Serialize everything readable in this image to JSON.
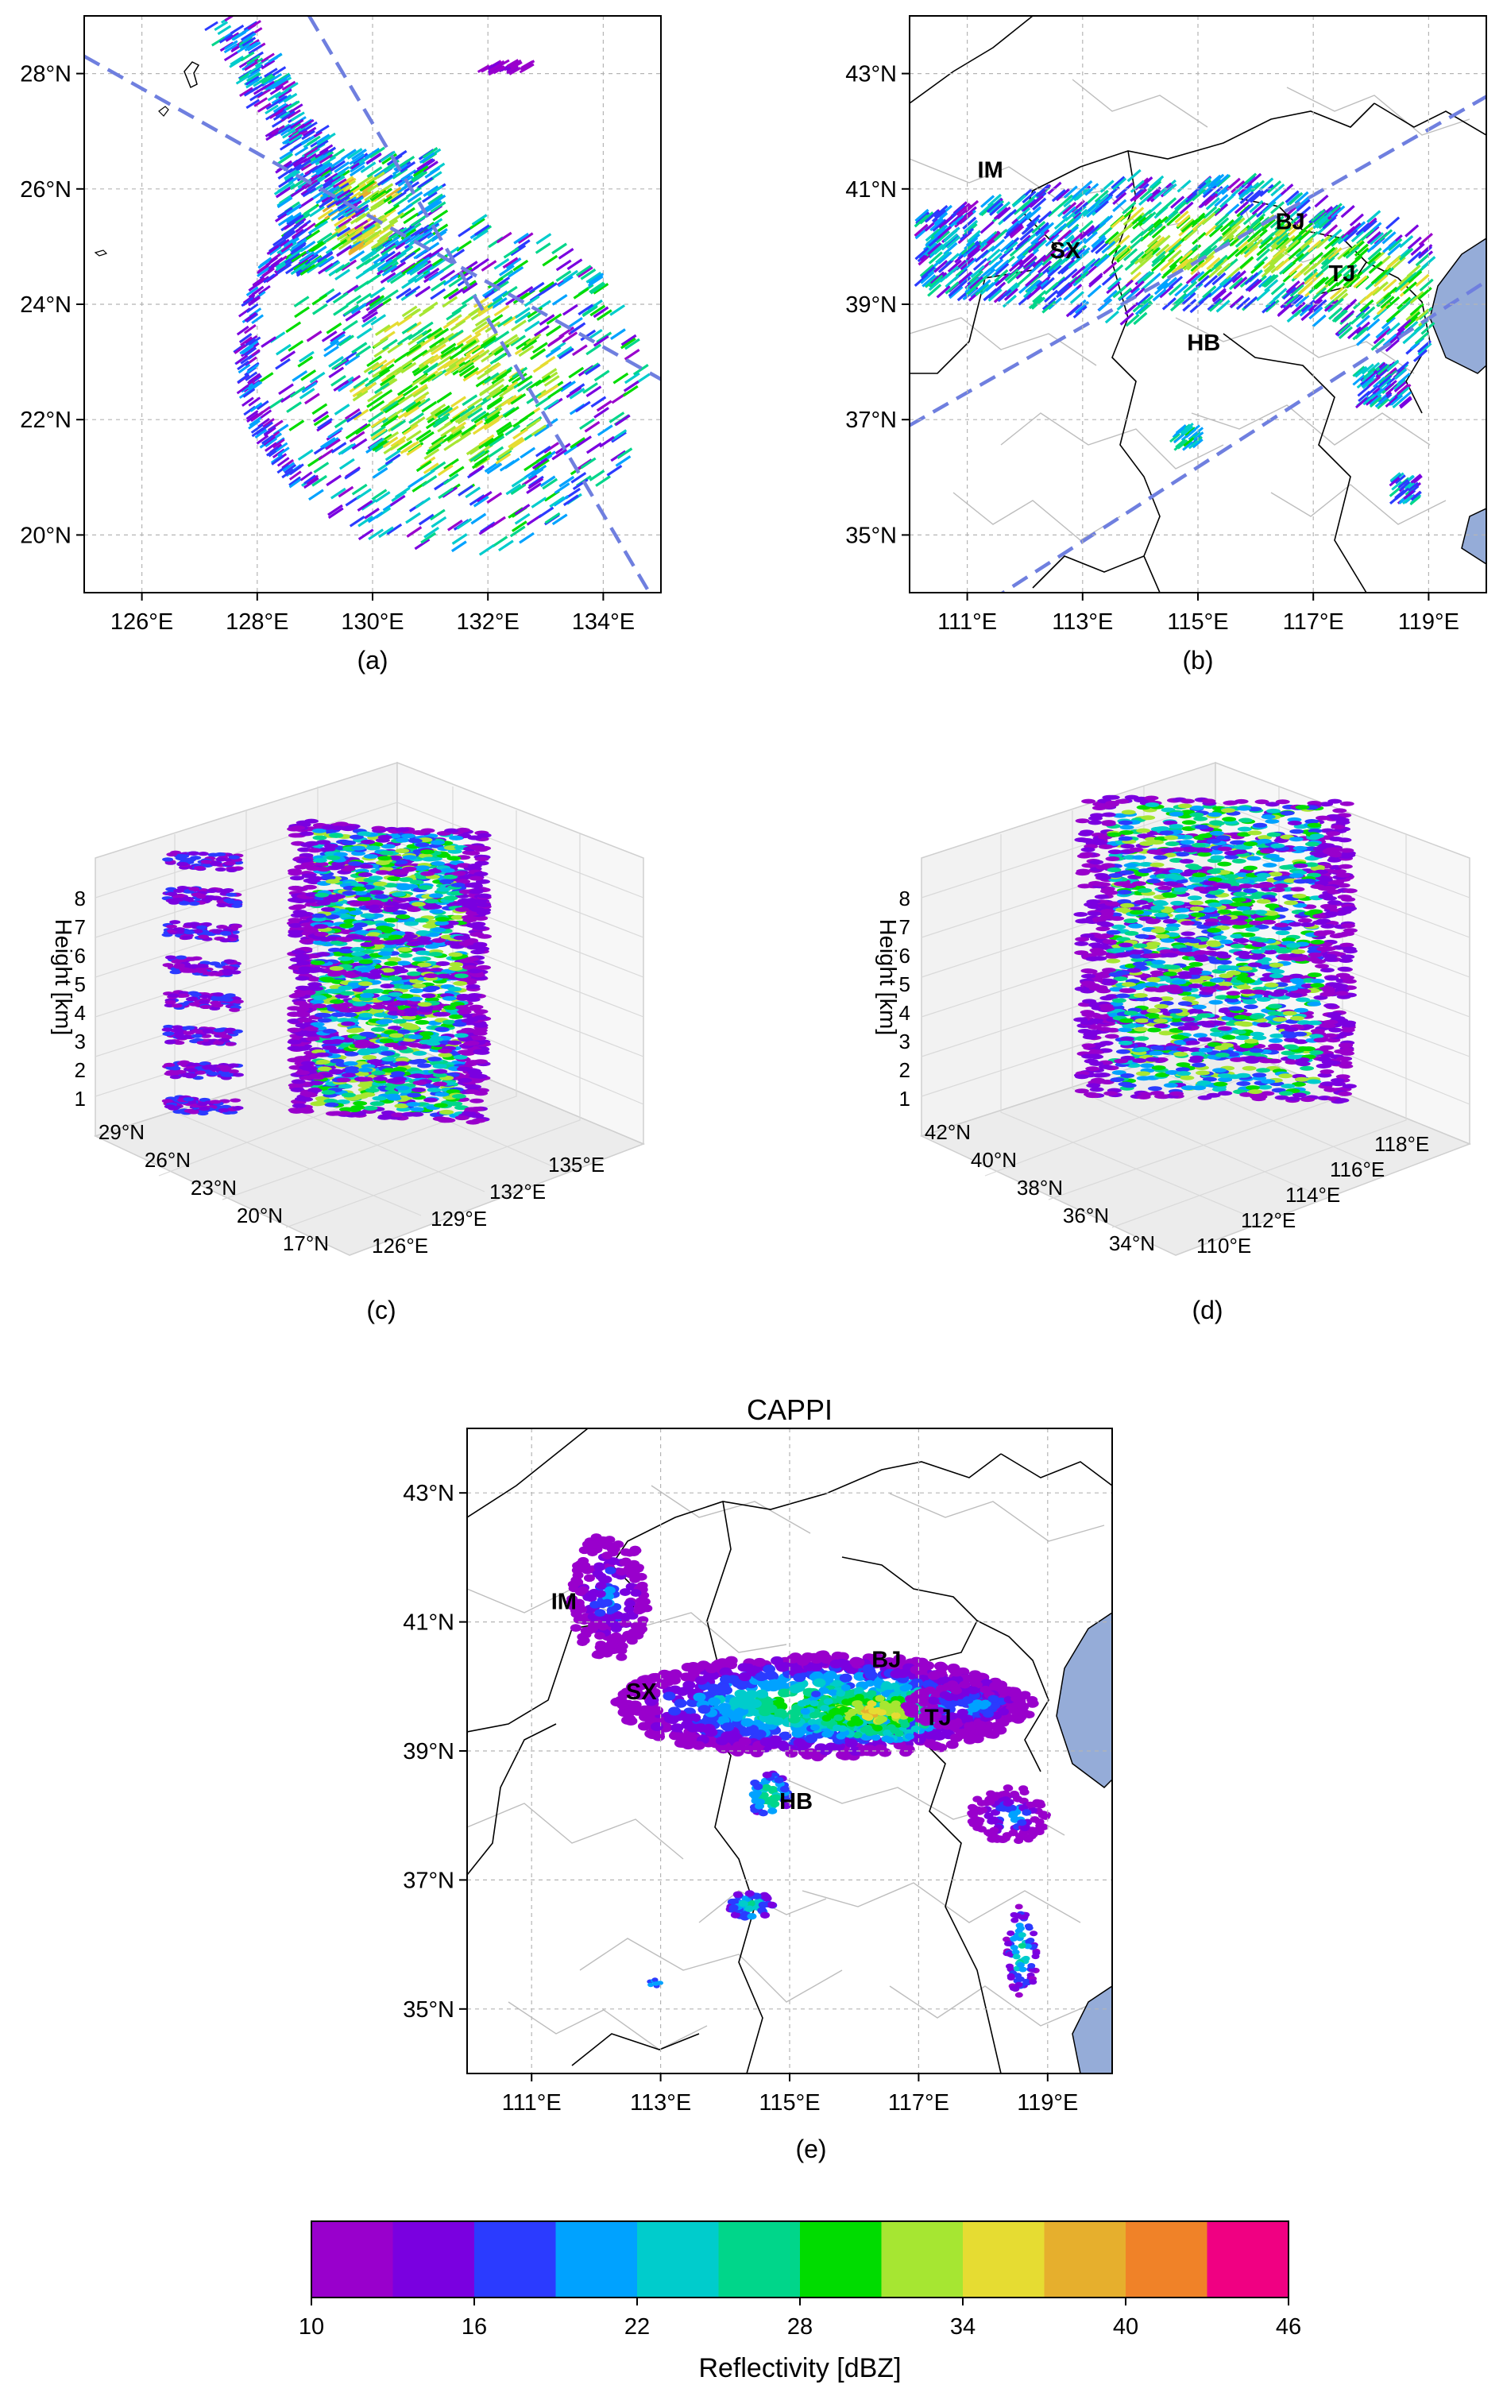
{
  "panel_captions": [
    "(a)",
    "(b)",
    "(c)",
    "(d)",
    "(e)"
  ],
  "colors": {
    "dashed_line": "#6f7fdf",
    "sea": "#95acd8",
    "grid": "#b5b5b5",
    "pane": "#f2f2f2"
  },
  "chart_data": [
    {
      "id": "a",
      "type": "scatter",
      "description_type": "map",
      "xlim": [
        125,
        135
      ],
      "ylim": [
        19,
        29
      ],
      "x_ticks": [
        126,
        128,
        130,
        132,
        134
      ],
      "x_tick_labels": [
        "126°E",
        "128°E",
        "130°E",
        "132°E",
        "134°E"
      ],
      "y_ticks": [
        20,
        22,
        24,
        26,
        28
      ],
      "y_tick_labels": [
        "20°N",
        "22°N",
        "24°N",
        "26°N",
        "28°N"
      ],
      "grid": true,
      "swath_lines": [
        {
          "x": [
            125,
            135
          ],
          "y": [
            28.3,
            22.7
          ]
        },
        {
          "x": [
            128.9,
            134.8
          ],
          "y": [
            29,
            19
          ]
        }
      ],
      "echo_regions": [
        {
          "name": "typhoon-core",
          "center": [
            131.5,
            22.5
          ],
          "rx": 2.5,
          "ry": 2.3,
          "level": 28
        },
        {
          "name": "northern-band",
          "center": [
            129.8,
            25.7
          ],
          "rx": 1.5,
          "ry": 1.2,
          "level": 30
        },
        {
          "name": "outer-band",
          "center": [
            128.5,
            27.2
          ],
          "rx": 1.2,
          "ry": 1.5,
          "level": 22
        }
      ]
    },
    {
      "id": "b",
      "type": "scatter",
      "description_type": "map",
      "xlim": [
        110,
        120
      ],
      "ylim": [
        34,
        44
      ],
      "x_ticks": [
        111,
        113,
        115,
        117,
        119
      ],
      "x_tick_labels": [
        "111°E",
        "113°E",
        "115°E",
        "117°E",
        "119°E"
      ],
      "y_ticks": [
        35,
        37,
        39,
        41,
        43
      ],
      "y_tick_labels": [
        "35°N",
        "37°N",
        "39°N",
        "41°N",
        "43°N"
      ],
      "grid": true,
      "region_labels": [
        {
          "text": "IM",
          "lon": 111.4,
          "lat": 41.2
        },
        {
          "text": "SX",
          "lon": 112.7,
          "lat": 39.8
        },
        {
          "text": "BJ",
          "lon": 116.6,
          "lat": 40.3
        },
        {
          "text": "TJ",
          "lon": 117.5,
          "lat": 39.4
        },
        {
          "text": "HB",
          "lon": 115.1,
          "lat": 38.2
        }
      ],
      "swath_lines": [
        {
          "x": [
            110,
            120
          ],
          "y": [
            36.9,
            42.6
          ]
        },
        {
          "x": [
            111,
            120
          ],
          "y": [
            33.6,
            39.4
          ]
        }
      ]
    },
    {
      "id": "c",
      "type": "scatter",
      "description_type": "3d-volume",
      "zlabel": "Height [km]",
      "z_ticks": [
        "1",
        "2",
        "3",
        "4",
        "5",
        "6",
        "7",
        "8"
      ],
      "lat_ticks": [
        "29°N",
        "26°N",
        "23°N",
        "20°N",
        "17°N"
      ],
      "lon_ticks": [
        "126°E",
        "129°E",
        "132°E",
        "135°E"
      ],
      "levels_km": [
        1,
        2,
        3,
        4,
        5,
        6,
        7,
        8
      ]
    },
    {
      "id": "d",
      "type": "scatter",
      "description_type": "3d-volume",
      "zlabel": "Height [km]",
      "z_ticks": [
        "1",
        "2",
        "3",
        "4",
        "5",
        "6",
        "7",
        "8"
      ],
      "lat_ticks": [
        "42°N",
        "40°N",
        "38°N",
        "36°N",
        "34°N"
      ],
      "lon_ticks": [
        "110°E",
        "112°E",
        "114°E",
        "116°E",
        "118°E"
      ],
      "levels_km": [
        1,
        2,
        3,
        4,
        5,
        6,
        7,
        8
      ]
    },
    {
      "id": "e",
      "type": "heatmap",
      "description_type": "map",
      "title": "CAPPI",
      "xlim": [
        110,
        120
      ],
      "ylim": [
        34,
        44
      ],
      "x_ticks": [
        111,
        113,
        115,
        117,
        119
      ],
      "x_tick_labels": [
        "111°E",
        "113°E",
        "115°E",
        "117°E",
        "119°E"
      ],
      "y_ticks": [
        35,
        37,
        39,
        41,
        43
      ],
      "y_tick_labels": [
        "35°N",
        "37°N",
        "39°N",
        "41°N",
        "43°N"
      ],
      "grid": true,
      "region_labels": [
        {
          "text": "IM",
          "lon": 111.5,
          "lat": 41.2
        },
        {
          "text": "SX",
          "lon": 112.7,
          "lat": 39.8
        },
        {
          "text": "BJ",
          "lon": 116.5,
          "lat": 40.3
        },
        {
          "text": "TJ",
          "lon": 117.3,
          "lat": 39.4
        },
        {
          "text": "HB",
          "lon": 115.1,
          "lat": 38.1
        }
      ]
    }
  ],
  "colorbar": {
    "label": "Reflectivity [dBZ]",
    "tick_values": [
      10,
      16,
      22,
      28,
      34,
      40,
      46
    ],
    "tick_labels": [
      "10",
      "16",
      "22",
      "28",
      "34",
      "40",
      "46"
    ],
    "bins": [
      {
        "from": 10,
        "to": 13,
        "color": "#9900cc"
      },
      {
        "from": 13,
        "to": 16,
        "color": "#7a00e0"
      },
      {
        "from": 16,
        "to": 19,
        "color": "#2b3bff"
      },
      {
        "from": 19,
        "to": 22,
        "color": "#00a2ff"
      },
      {
        "from": 22,
        "to": 25,
        "color": "#00cccc"
      },
      {
        "from": 25,
        "to": 28,
        "color": "#00d68a"
      },
      {
        "from": 28,
        "to": 31,
        "color": "#00dc00"
      },
      {
        "from": 31,
        "to": 34,
        "color": "#a6e632"
      },
      {
        "from": 34,
        "to": 37,
        "color": "#e6dc32"
      },
      {
        "from": 37,
        "to": 40,
        "color": "#e6af2d"
      },
      {
        "from": 40,
        "to": 43,
        "color": "#f08228"
      },
      {
        "from": 43,
        "to": 46,
        "color": "#f00082"
      }
    ]
  }
}
